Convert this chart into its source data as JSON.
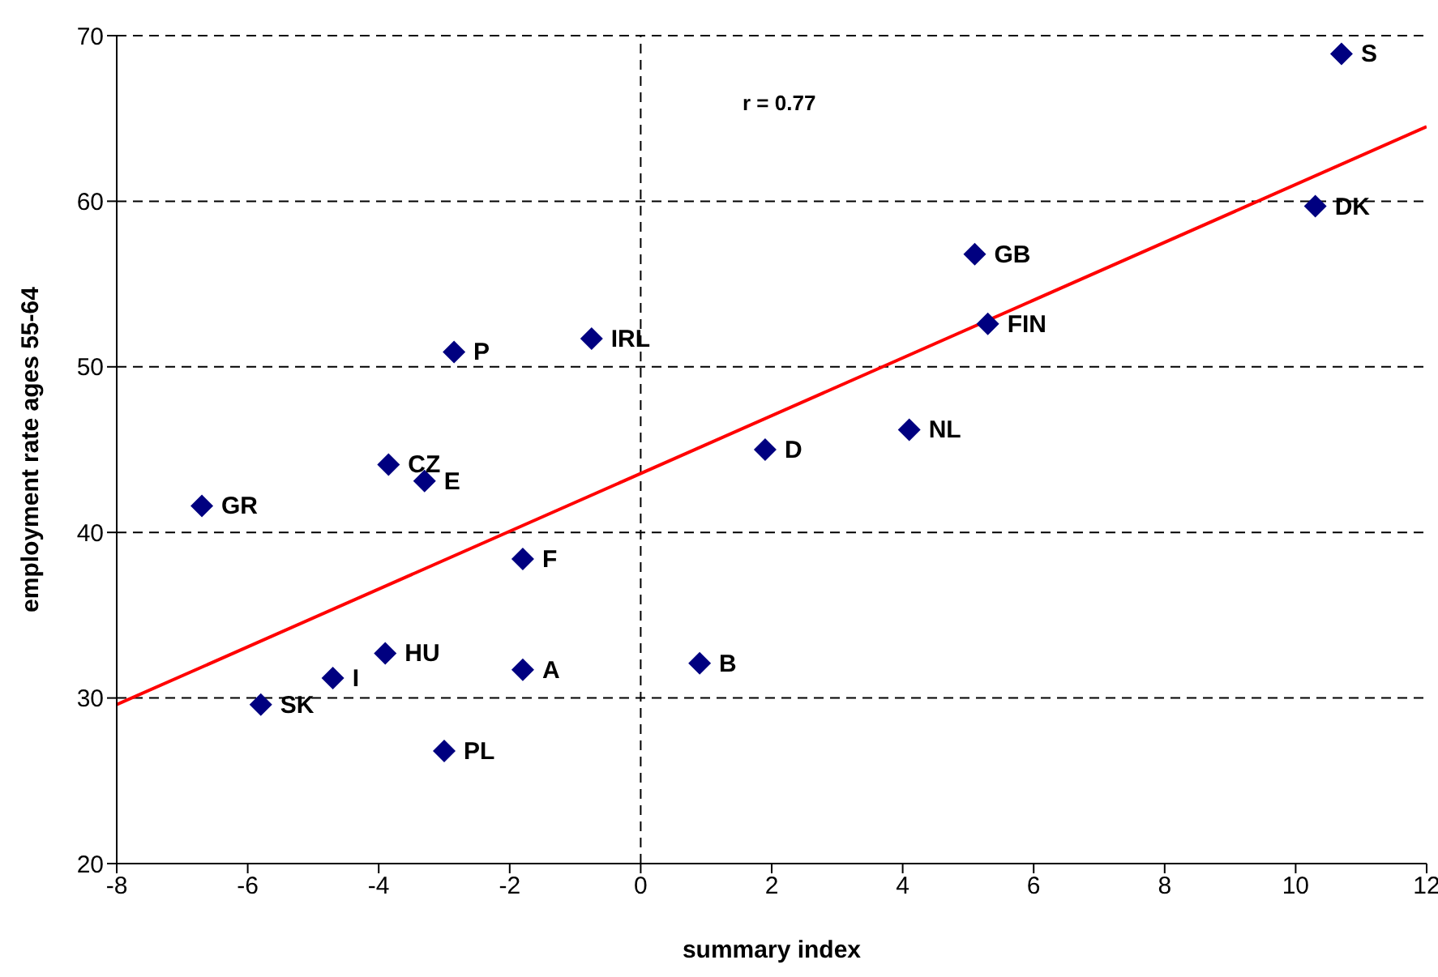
{
  "chart_data": {
    "type": "scatter",
    "xlabel": "summary index",
    "ylabel": "employment rate ages 55-64",
    "xlim": [
      -8,
      12
    ],
    "xticks": [
      -8,
      -6,
      -4,
      -2,
      0,
      2,
      4,
      6,
      8,
      10,
      12
    ],
    "ylim": [
      20,
      70
    ],
    "yticks": [
      20,
      30,
      40,
      50,
      60,
      70
    ],
    "grid": "y",
    "legend": false,
    "marker": "diamond",
    "annotations": [
      "r = 0.77"
    ],
    "ref_lines": [
      {
        "axis": "x",
        "value": 0,
        "color": "#000000",
        "line_style": "dashed"
      }
    ],
    "series": [
      {
        "name": "S",
        "color": "#000080",
        "x": [
          10.7
        ],
        "values": [
          68.9
        ]
      },
      {
        "name": "DK",
        "color": "#000080",
        "x": [
          10.3
        ],
        "values": [
          59.7
        ]
      },
      {
        "name": "GB",
        "color": "#000080",
        "x": [
          5.1
        ],
        "values": [
          56.8
        ]
      },
      {
        "name": "FIN",
        "color": "#000080",
        "x": [
          5.3
        ],
        "values": [
          52.6
        ]
      },
      {
        "name": "NL",
        "color": "#000080",
        "x": [
          4.1
        ],
        "values": [
          46.2
        ]
      },
      {
        "name": "D",
        "color": "#000080",
        "x": [
          1.9
        ],
        "values": [
          45.0
        ]
      },
      {
        "name": "B",
        "color": "#000080",
        "x": [
          0.9
        ],
        "values": [
          32.1
        ]
      },
      {
        "name": "IRL",
        "color": "#000080",
        "x": [
          -0.75
        ],
        "values": [
          51.7
        ]
      },
      {
        "name": "P",
        "color": "#000080",
        "x": [
          -2.85
        ],
        "values": [
          50.9
        ]
      },
      {
        "name": "CZ",
        "color": "#000080",
        "x": [
          -3.85
        ],
        "values": [
          44.1
        ]
      },
      {
        "name": "E",
        "color": "#000080",
        "x": [
          -3.3
        ],
        "values": [
          43.1
        ]
      },
      {
        "name": "GR",
        "color": "#000080",
        "x": [
          -6.7
        ],
        "values": [
          41.6
        ]
      },
      {
        "name": "F",
        "color": "#000080",
        "x": [
          -1.8
        ],
        "values": [
          38.4
        ]
      },
      {
        "name": "HU",
        "color": "#000080",
        "x": [
          -3.9
        ],
        "values": [
          32.7
        ]
      },
      {
        "name": "A",
        "color": "#000080",
        "x": [
          -1.8
        ],
        "values": [
          31.7
        ]
      },
      {
        "name": "I",
        "color": "#000080",
        "x": [
          -4.7
        ],
        "values": [
          31.2
        ]
      },
      {
        "name": "SK",
        "color": "#000080",
        "x": [
          -5.8
        ],
        "values": [
          29.6
        ]
      },
      {
        "name": "PL",
        "color": "#000080",
        "x": [
          -3.0
        ],
        "values": [
          26.8
        ]
      },
      {
        "type": "line",
        "color": "#ff0000",
        "marker": "none",
        "x": [
          -8,
          12
        ],
        "values": [
          29.6,
          64.5
        ]
      }
    ]
  }
}
